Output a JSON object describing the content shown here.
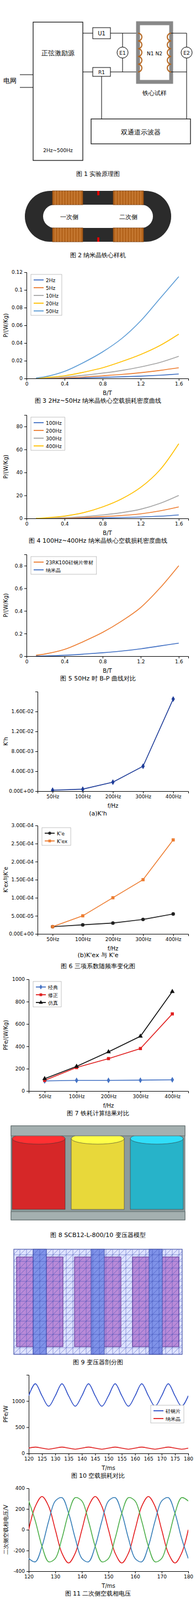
{
  "figure1": {
    "caption": "图 1 实验原理图",
    "labels": [
      "电网",
      "正弦激励源",
      "2Hz~500Hz",
      "U1",
      "R1",
      "E1",
      "E2",
      "N1 N2",
      "铁心试样",
      "双通道示波器"
    ]
  },
  "figure2": {
    "caption": "图 2 纳米晶铁心样机",
    "labels": [
      "一次侧",
      "二次侧"
    ]
  },
  "figure8": {
    "caption": "图 8 SCB12-L-800/10 变压器模型"
  },
  "figure9": {
    "caption": "图 9 变压器剖分图"
  },
  "chart_data": [
    {
      "type": "line",
      "title": "图 3 2Hz~50Hz 纳米晶铁心空载损耗密度曲线",
      "x_label": "B/T",
      "y_label": "P/(W/Kg)",
      "x": [
        0.1,
        0.2,
        0.4,
        0.6,
        0.8,
        1.0,
        1.2,
        1.4,
        1.6
      ],
      "xlim": [
        0,
        1.7
      ],
      "xticks": [
        0,
        0.4,
        0.8,
        1.2,
        1.6
      ],
      "ylim": [
        0,
        0.12
      ],
      "yticks": [
        0,
        0.02,
        0.04,
        0.06,
        0.08,
        0.1,
        0.12
      ],
      "grid": false,
      "legend": "top-left",
      "series": [
        {
          "name": "2Hz",
          "color": "#4472c4",
          "values": [
            0,
            0.0001,
            0.0003,
            0.0007,
            0.0012,
            0.0018,
            0.0026,
            0.0036,
            0.005
          ]
        },
        {
          "name": "5Hz",
          "color": "#ed7d31",
          "values": [
            0.0001,
            0.0002,
            0.0007,
            0.0016,
            0.003,
            0.0045,
            0.0065,
            0.009,
            0.012
          ]
        },
        {
          "name": "10Hz",
          "color": "#a5a5a5",
          "values": [
            0.0001,
            0.0005,
            0.0015,
            0.0035,
            0.006,
            0.009,
            0.013,
            0.018,
            0.025
          ]
        },
        {
          "name": "20Hz",
          "color": "#ffc000",
          "values": [
            0.0002,
            0.001,
            0.003,
            0.007,
            0.012,
            0.019,
            0.027,
            0.037,
            0.05
          ]
        },
        {
          "name": "50Hz",
          "color": "#5b9bd5",
          "values": [
            0.0005,
            0.002,
            0.008,
            0.018,
            0.03,
            0.045,
            0.065,
            0.09,
            0.115
          ]
        }
      ]
    },
    {
      "type": "line",
      "title": "图 4 100Hz~400Hz 纳米晶铁心空载损耗密度曲线",
      "x_label": "B/T",
      "y_label": "P/(W/Kg)",
      "x": [
        0.1,
        0.2,
        0.4,
        0.6,
        0.8,
        1.0,
        1.2,
        1.4,
        1.6
      ],
      "xlim": [
        0,
        1.7
      ],
      "xticks": [
        0,
        0.4,
        0.8,
        1.2,
        1.6
      ],
      "ylim": [
        0,
        90
      ],
      "yticks": [
        0,
        20,
        40,
        60,
        80
      ],
      "grid": false,
      "legend": "top-left",
      "series": [
        {
          "name": "100Hz",
          "color": "#4472c4",
          "values": [
            0.01,
            0.03,
            0.1,
            0.25,
            0.45,
            0.75,
            1.2,
            1.9,
            3
          ]
        },
        {
          "name": "200Hz",
          "color": "#ed7d31",
          "values": [
            0.02,
            0.1,
            0.35,
            0.8,
            1.5,
            2.5,
            4,
            6.5,
            10
          ]
        },
        {
          "name": "300Hz",
          "color": "#a5a5a5",
          "values": [
            0.05,
            0.2,
            0.7,
            1.6,
            3,
            5,
            8,
            13,
            20
          ]
        },
        {
          "name": "400Hz",
          "color": "#ffc000",
          "values": [
            0.1,
            0.5,
            2,
            5,
            10,
            17,
            27,
            42,
            65
          ]
        }
      ]
    },
    {
      "type": "line",
      "title": "图 5 50Hz 时 B-P 曲线对比",
      "x_label": "B/T",
      "y_label": "P/(W/Kg)",
      "x": [
        0.1,
        0.2,
        0.4,
        0.6,
        0.8,
        1.0,
        1.2,
        1.4,
        1.6
      ],
      "xlim": [
        0,
        1.7
      ],
      "xticks": [
        0,
        0.4,
        0.8,
        1.2,
        1.6
      ],
      "ylim": [
        0,
        0.9
      ],
      "yticks": [
        0,
        0.2,
        0.4,
        0.6,
        0.8
      ],
      "grid": false,
      "legend": "top-left",
      "series": [
        {
          "name": "23RK100硅钢片带材",
          "color": "#ed7d31",
          "values": [
            0.008,
            0.02,
            0.06,
            0.13,
            0.21,
            0.31,
            0.43,
            0.6,
            0.8
          ]
        },
        {
          "name": "纳米晶",
          "color": "#4472c4",
          "values": [
            0.0005,
            0.002,
            0.008,
            0.018,
            0.03,
            0.045,
            0.065,
            0.09,
            0.115
          ]
        }
      ]
    },
    {
      "type": "line",
      "subtitle": "(a)K'h",
      "x_label": "f/Hz",
      "y_label": "K'h",
      "categories": [
        "50Hz",
        "100Hz",
        "200Hz",
        "300Hz",
        "400Hz"
      ],
      "ylim": [
        0,
        0.02
      ],
      "yticks": [
        {
          "value": 0,
          "label": "0.00E+00"
        },
        {
          "value": 0.004,
          "label": "4.00E-03"
        },
        {
          "value": 0.008,
          "label": "8.00E-03"
        },
        {
          "value": 0.012,
          "label": "1.20E-02"
        },
        {
          "value": 0.016,
          "label": "1.60E-02"
        }
      ],
      "grid": false,
      "series": [
        {
          "color": "#1f3d99",
          "marker": "diamond",
          "values": [
            0.0002,
            0.0004,
            0.0018,
            0.005,
            0.0185
          ]
        }
      ]
    },
    {
      "type": "line",
      "title": "图 6 三项系数随频率变化图",
      "subtitle": "(b)K'ex 与 K'e",
      "x_label": "f/Hz",
      "y_label": "K'ex与K'e",
      "categories": [
        "50Hz",
        "100Hz",
        "200Hz",
        "300Hz",
        "400Hz"
      ],
      "ylim": [
        0,
        0.0003
      ],
      "yticks": [
        {
          "value": 0,
          "label": "0.00E+00"
        },
        {
          "value": 5e-05,
          "label": "5.00E-05"
        },
        {
          "value": 0.0001,
          "label": "1.00E-04"
        },
        {
          "value": 0.00015,
          "label": "1.50E-04"
        },
        {
          "value": 0.0002,
          "label": "2.00E-04"
        },
        {
          "value": 0.00025,
          "label": "2.50E-04"
        },
        {
          "value": 0.0003,
          "label": "3.00E-04"
        }
      ],
      "grid": false,
      "legend": "top-left",
      "series": [
        {
          "name": "K'e",
          "color": "#222222",
          "marker": "circle",
          "values": [
            2e-05,
            2.5e-05,
            3e-05,
            4e-05,
            5.5e-05
          ]
        },
        {
          "name": "K'ex",
          "color": "#ed7d31",
          "marker": "square",
          "values": [
            2e-05,
            5e-05,
            0.0001,
            0.00015,
            0.00026
          ]
        }
      ]
    },
    {
      "type": "line",
      "title": "图 7 铁耗计算结果对比",
      "x_label": "f/Hz",
      "y_label": "PFe/(W/Kg)",
      "categories": [
        "50Hz",
        "100Hz",
        "200Hz",
        "300Hz",
        "400Hz"
      ],
      "ylim": [
        0,
        1000
      ],
      "yticks": [
        0,
        200,
        400,
        600,
        800,
        1000
      ],
      "grid": false,
      "legend": "top-left",
      "series": [
        {
          "name": "经典",
          "color": "#4472c4",
          "marker": "diamond",
          "values": [
            90,
            95,
            95,
            97,
            100
          ]
        },
        {
          "name": "修正",
          "color": "#e02020",
          "marker": "square",
          "values": [
            95,
            210,
            290,
            380,
            690
          ]
        },
        {
          "name": "仿真",
          "color": "#111111",
          "marker": "triangle",
          "values": [
            110,
            220,
            350,
            490,
            890
          ]
        }
      ]
    },
    {
      "type": "line",
      "title": "图 10 空载损耗对比",
      "x_label": "T/ms",
      "y_label": "PFe/W",
      "x": [
        120,
        122.5,
        125,
        127.5,
        130,
        132.5,
        135,
        137.5,
        140,
        142.5,
        145,
        147.5,
        150,
        152.5,
        155,
        157.5,
        160,
        162.5,
        165,
        167.5,
        170,
        172.5,
        175,
        177.5,
        180
      ],
      "xlim": [
        120,
        180
      ],
      "xticks": [
        120,
        125,
        130,
        135,
        140,
        145,
        150,
        155,
        160,
        165,
        170,
        175,
        180
      ],
      "ylim": [
        0,
        1500
      ],
      "yticks": [
        0,
        500,
        1000
      ],
      "grid": false,
      "legend": "right",
      "series": [
        {
          "name": "硅钢片",
          "color": "#3050c8",
          "values": [
            1100,
            1330,
            1100,
            900,
            1100,
            1330,
            1100,
            900,
            1100,
            1330,
            1100,
            900,
            1100,
            1330,
            1100,
            900,
            1100,
            1330,
            1100,
            900,
            1100,
            1330,
            1100,
            900,
            1100
          ]
        },
        {
          "name": "纳米晶",
          "color": "#e02020",
          "values": [
            100,
            120,
            100,
            80,
            100,
            120,
            100,
            80,
            100,
            120,
            100,
            80,
            100,
            120,
            100,
            80,
            100,
            120,
            100,
            80,
            100,
            120,
            100,
            80,
            100
          ]
        }
      ]
    },
    {
      "type": "line",
      "title": "图 11 二次侧空载相电压",
      "x_label": "T/ms",
      "y_label": "二次侧空载相电压/V",
      "x": [
        120,
        122.5,
        125,
        127.5,
        130,
        132.5,
        135,
        137.5,
        140,
        142.5,
        145,
        147.5,
        150,
        152.5,
        155,
        157.5,
        160,
        162.5,
        165,
        167.5,
        170,
        172.5,
        175,
        177.5,
        180
      ],
      "xlim": [
        120,
        180
      ],
      "xticks": [
        120,
        130,
        140,
        150,
        160,
        170,
        180
      ],
      "ylim": [
        -400,
        400
      ],
      "yticks": [
        -400,
        -200,
        0,
        200,
        400
      ],
      "grid": false,
      "series": [
        {
          "color": "#e41a1c",
          "values": [
            0,
            226,
            320,
            226,
            0,
            -226,
            -320,
            -226,
            0,
            226,
            320,
            226,
            0,
            -226,
            -320,
            -226,
            0,
            226,
            320,
            226,
            0,
            -226,
            -320,
            -226,
            0
          ]
        },
        {
          "color": "#377eb8",
          "values": [
            -277,
            -309,
            -160,
            83,
            277,
            309,
            160,
            -83,
            -277,
            -309,
            -160,
            83,
            277,
            309,
            160,
            -83,
            -277,
            -309,
            -160,
            83,
            277,
            309,
            160,
            -83,
            -277
          ]
        },
        {
          "color": "#4daf4a",
          "values": [
            277,
            83,
            -160,
            -309,
            -277,
            -83,
            160,
            309,
            277,
            83,
            -160,
            -309,
            -277,
            -83,
            160,
            309,
            277,
            83,
            -160,
            -309,
            -277,
            -83,
            160,
            309,
            277
          ]
        }
      ]
    }
  ]
}
